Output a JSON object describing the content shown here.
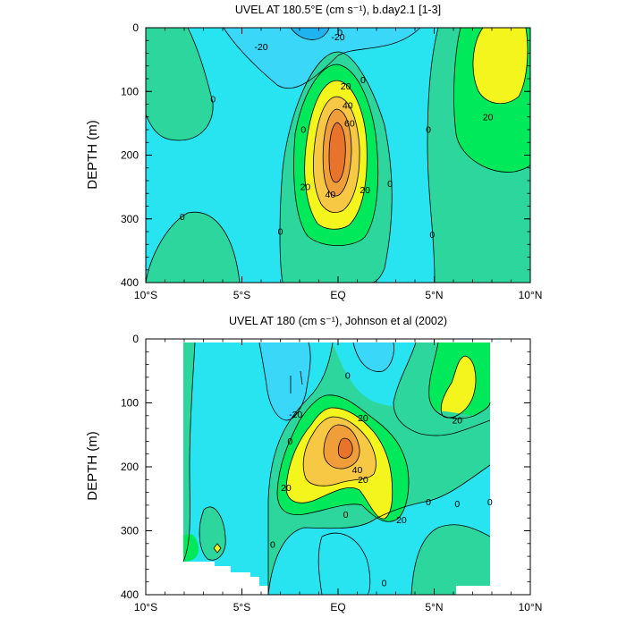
{
  "chart_data": [
    {
      "type": "contour",
      "title": "UVEL AT 180.5°E (cm s⁻¹), b.day2.1 [1-3]",
      "ylabel": "DEPTH (m)",
      "xlabel": "",
      "x_ticks": [
        "10°S",
        "5°S",
        "EQ",
        "5°N",
        "10°N"
      ],
      "y_ticks": [
        "0",
        "100",
        "200",
        "300",
        "400"
      ],
      "xlim": [
        -10,
        10
      ],
      "ylim": [
        400,
        0
      ],
      "contour_levels": [
        -40,
        -20,
        0,
        20,
        40,
        60,
        80
      ],
      "colors": {
        "lt-20": "#1fb4f0",
        "-20to0": "#27e4f0",
        "0to10": "#2dd69d",
        "10to20": "#00e95a",
        "20to40": "#33f733",
        "40to60": "#f5f51e",
        "60to80": "#f7c843",
        "80to100": "#f09e3a",
        "gt100": "#e8742b"
      },
      "contour_labels": [
        {
          "text": "0",
          "lat": 0.1,
          "depth": 8
        },
        {
          "text": "-20",
          "lat": -4,
          "depth": 30
        },
        {
          "text": "-20",
          "lat": 0,
          "depth": 15
        },
        {
          "text": "0",
          "lat": -6.5,
          "depth": 112
        },
        {
          "text": "0",
          "lat": 1.3,
          "depth": 82
        },
        {
          "text": "20",
          "lat": 0.4,
          "depth": 92
        },
        {
          "text": "40",
          "lat": 0.5,
          "depth": 122
        },
        {
          "text": "60",
          "lat": 0.6,
          "depth": 150
        },
        {
          "text": "0",
          "lat": -1.8,
          "depth": 160
        },
        {
          "text": "0",
          "lat": 4.7,
          "depth": 160
        },
        {
          "text": "20",
          "lat": 7.8,
          "depth": 140
        },
        {
          "text": "20",
          "lat": -1.7,
          "depth": 250
        },
        {
          "text": "40",
          "lat": -0.4,
          "depth": 262
        },
        {
          "text": "20",
          "lat": 1.4,
          "depth": 255
        },
        {
          "text": "0",
          "lat": 2.7,
          "depth": 245
        },
        {
          "text": "0",
          "lat": -8.1,
          "depth": 297
        },
        {
          "text": "0",
          "lat": -3,
          "depth": 320
        },
        {
          "text": "0",
          "lat": 4.9,
          "depth": 325
        }
      ]
    },
    {
      "type": "contour",
      "title": "UVEL AT 180 (cm s⁻¹), Johnson et al (2002)",
      "ylabel": "DEPTH (m)",
      "xlabel": "",
      "x_ticks": [
        "10°S",
        "5°S",
        "EQ",
        "5°N",
        "10°N"
      ],
      "y_ticks": [
        "0",
        "100",
        "200",
        "300",
        "400"
      ],
      "xlim": [
        -10,
        10
      ],
      "ylim": [
        400,
        0
      ],
      "data_extent": {
        "lat": [
          -8,
          8
        ],
        "depth": [
          5,
          400
        ]
      },
      "contour_levels": [
        -40,
        -20,
        0,
        20,
        40,
        60,
        80
      ],
      "contour_labels": [
        {
          "text": "-20",
          "lat": -2.2,
          "depth": 118
        },
        {
          "text": "20",
          "lat": 1.3,
          "depth": 124
        },
        {
          "text": "20",
          "lat": 6.2,
          "depth": 127
        },
        {
          "text": "0",
          "lat": 0.5,
          "depth": 57
        },
        {
          "text": "0",
          "lat": -2.5,
          "depth": 160
        },
        {
          "text": "40",
          "lat": 1.0,
          "depth": 205
        },
        {
          "text": "20",
          "lat": 1.3,
          "depth": 220
        },
        {
          "text": "20",
          "lat": -2.7,
          "depth": 233
        },
        {
          "text": "20",
          "lat": 3.3,
          "depth": 283
        },
        {
          "text": "0",
          "lat": 0.4,
          "depth": 275
        },
        {
          "text": "0",
          "lat": 4.7,
          "depth": 255
        },
        {
          "text": "0",
          "lat": 6.2,
          "depth": 258
        },
        {
          "text": "0",
          "lat": 7.9,
          "depth": 255
        },
        {
          "text": "0",
          "lat": -3.4,
          "depth": 322
        },
        {
          "text": "0",
          "lat": 2.4,
          "depth": 382
        }
      ]
    }
  ]
}
